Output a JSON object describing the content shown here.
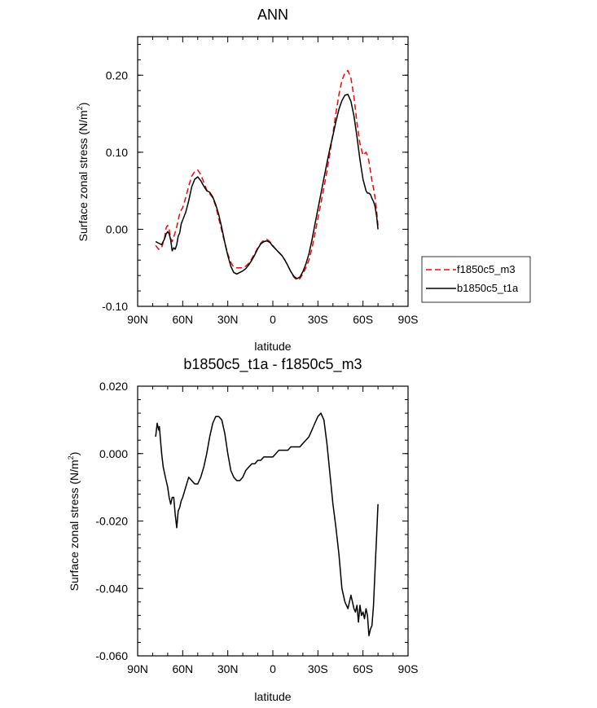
{
  "chart_data": [
    {
      "type": "line",
      "title": "ANN",
      "xlabel": "latitude",
      "ylabel": "Surface zonal stress (N/m",
      "ylabel_sup": "2",
      "ylabel_close": ")",
      "xlim": [
        90,
        -90
      ],
      "ylim": [
        -0.1,
        0.25
      ],
      "xticks": [
        {
          "value": 90,
          "label": "90N"
        },
        {
          "value": 60,
          "label": "60N"
        },
        {
          "value": 30,
          "label": "30N"
        },
        {
          "value": 0,
          "label": "0"
        },
        {
          "value": -30,
          "label": "30S"
        },
        {
          "value": -60,
          "label": "60S"
        },
        {
          "value": -90,
          "label": "90S"
        }
      ],
      "yticks": [
        {
          "value": 0.2,
          "label": "0.20"
        },
        {
          "value": 0.1,
          "label": "0.10"
        },
        {
          "value": 0.0,
          "label": "0.00"
        },
        {
          "value": -0.1,
          "label": "-0.10"
        }
      ],
      "legend_placement": "outside-right",
      "series": [
        {
          "name": "f1850c5_m3",
          "color": "#ff0000",
          "dashed": true,
          "x": [
            78,
            76,
            74,
            72,
            71,
            70,
            69,
            68,
            67,
            66,
            65,
            64,
            63,
            62,
            61,
            60,
            58,
            56,
            54,
            52,
            50,
            48,
            46,
            44,
            42,
            40,
            38,
            36,
            34,
            32,
            30,
            28,
            26,
            24,
            22,
            20,
            18,
            16,
            14,
            12,
            10,
            8,
            6,
            4,
            2,
            0,
            -2,
            -4,
            -6,
            -8,
            -10,
            -12,
            -14,
            -16,
            -18,
            -20,
            -22,
            -24,
            -26,
            -28,
            -30,
            -32,
            -34,
            -36,
            -38,
            -40,
            -42,
            -44,
            -46,
            -48,
            -50,
            -52,
            -54,
            -56,
            -58,
            -60,
            -62,
            -63,
            -64,
            -65,
            -66,
            -67,
            -68,
            -69,
            -70
          ],
          "y": [
            -0.021,
            -0.026,
            -0.024,
            -0.01,
            0.002,
            0.005,
            0.0,
            -0.012,
            -0.016,
            -0.01,
            -0.004,
            0.003,
            0.012,
            0.02,
            0.025,
            0.028,
            0.041,
            0.056,
            0.069,
            0.075,
            0.077,
            0.071,
            0.061,
            0.051,
            0.046,
            0.041,
            0.03,
            0.014,
            -0.002,
            -0.018,
            -0.032,
            -0.043,
            -0.049,
            -0.05,
            -0.05,
            -0.05,
            -0.048,
            -0.044,
            -0.038,
            -0.031,
            -0.024,
            -0.018,
            -0.014,
            -0.013,
            -0.016,
            -0.021,
            -0.026,
            -0.03,
            -0.034,
            -0.04,
            -0.047,
            -0.055,
            -0.062,
            -0.066,
            -0.064,
            -0.058,
            -0.05,
            -0.04,
            -0.025,
            -0.006,
            0.014,
            0.034,
            0.054,
            0.075,
            0.099,
            0.124,
            0.151,
            0.175,
            0.193,
            0.203,
            0.206,
            0.196,
            0.172,
            0.138,
            0.111,
            0.096,
            0.1,
            0.096,
            0.088,
            0.075,
            0.063,
            0.053,
            0.042,
            0.025,
            0.005
          ]
        },
        {
          "name": "b1850c5_t1a",
          "color": "#000000",
          "dashed": false,
          "x": [
            78,
            76,
            74,
            72,
            71,
            70,
            69,
            68,
            67,
            66,
            65,
            64,
            63,
            62,
            61,
            60,
            58,
            56,
            54,
            52,
            50,
            48,
            46,
            44,
            42,
            40,
            38,
            36,
            34,
            32,
            30,
            28,
            26,
            24,
            22,
            20,
            18,
            16,
            14,
            12,
            10,
            8,
            6,
            4,
            2,
            0,
            -2,
            -4,
            -6,
            -8,
            -10,
            -12,
            -14,
            -16,
            -18,
            -20,
            -22,
            -24,
            -26,
            -28,
            -30,
            -32,
            -34,
            -36,
            -38,
            -40,
            -42,
            -44,
            -46,
            -48,
            -50,
            -52,
            -54,
            -56,
            -58,
            -60,
            -62,
            -63,
            -64,
            -65,
            -66,
            -67,
            -68,
            -69,
            -70
          ],
          "y": [
            -0.016,
            -0.018,
            -0.02,
            -0.012,
            -0.006,
            -0.003,
            -0.006,
            -0.014,
            -0.028,
            -0.024,
            -0.026,
            -0.02,
            -0.009,
            -0.005,
            0.007,
            0.012,
            0.022,
            0.037,
            0.055,
            0.065,
            0.068,
            0.063,
            0.056,
            0.05,
            0.048,
            0.042,
            0.032,
            0.019,
            0.002,
            -0.017,
            -0.034,
            -0.048,
            -0.056,
            -0.058,
            -0.056,
            -0.054,
            -0.051,
            -0.046,
            -0.04,
            -0.033,
            -0.025,
            -0.019,
            -0.016,
            -0.015,
            -0.017,
            -0.022,
            -0.026,
            -0.03,
            -0.034,
            -0.04,
            -0.047,
            -0.055,
            -0.061,
            -0.064,
            -0.062,
            -0.055,
            -0.045,
            -0.032,
            -0.014,
            0.006,
            0.026,
            0.046,
            0.066,
            0.086,
            0.105,
            0.122,
            0.14,
            0.156,
            0.167,
            0.174,
            0.175,
            0.166,
            0.147,
            0.12,
            0.09,
            0.065,
            0.05,
            0.047,
            0.047,
            0.045,
            0.04,
            0.036,
            0.03,
            0.018,
            0.0
          ]
        }
      ]
    },
    {
      "type": "line",
      "title": "b1850c5_t1a - f1850c5_m3",
      "xlabel": "latitude",
      "ylabel": "Surface zonal stress (N/m",
      "ylabel_sup": "2",
      "ylabel_close": ")",
      "xlim": [
        90,
        -90
      ],
      "ylim": [
        -0.06,
        0.02
      ],
      "xticks": [
        {
          "value": 90,
          "label": "90N"
        },
        {
          "value": 60,
          "label": "60N"
        },
        {
          "value": 30,
          "label": "30N"
        },
        {
          "value": 0,
          "label": "0"
        },
        {
          "value": -30,
          "label": "30S"
        },
        {
          "value": -60,
          "label": "60S"
        },
        {
          "value": -90,
          "label": "90S"
        }
      ],
      "yticks": [
        {
          "value": 0.02,
          "label": "0.020"
        },
        {
          "value": 0.0,
          "label": "0.000"
        },
        {
          "value": -0.02,
          "label": "-0.020"
        },
        {
          "value": -0.04,
          "label": "-0.040"
        },
        {
          "value": -0.06,
          "label": "-0.060"
        }
      ],
      "series": [
        {
          "color": "#000000",
          "dashed": false,
          "x": [
            78,
            77,
            76,
            75.5,
            75,
            74,
            73,
            72,
            71,
            70,
            69,
            68,
            67,
            66,
            65,
            64,
            63,
            62,
            61,
            60,
            58,
            56,
            54,
            52,
            50,
            48,
            46,
            44,
            42,
            40,
            38,
            36,
            34,
            32,
            30,
            28,
            26,
            24,
            22,
            20,
            18,
            16,
            14,
            12,
            10,
            8,
            6,
            4,
            2,
            0,
            -2,
            -4,
            -6,
            -8,
            -10,
            -12,
            -14,
            -16,
            -18,
            -20,
            -22,
            -24,
            -26,
            -28,
            -30,
            -32,
            -34,
            -36,
            -38,
            -40,
            -42,
            -44,
            -46,
            -48,
            -50,
            -52,
            -54,
            -55,
            -56,
            -57,
            -58,
            -59,
            -60,
            -61,
            -62,
            -63,
            -64,
            -65,
            -66,
            -67,
            -68,
            -69,
            -70
          ],
          "y": [
            0.005,
            0.009,
            0.007,
            0.008,
            0.005,
            0.0,
            -0.004,
            -0.006,
            -0.008,
            -0.01,
            -0.013,
            -0.015,
            -0.013,
            -0.013,
            -0.018,
            -0.022,
            -0.017,
            -0.016,
            -0.014,
            -0.013,
            -0.01,
            -0.007,
            -0.008,
            -0.009,
            -0.009,
            -0.007,
            -0.004,
            0.0,
            0.005,
            0.009,
            0.011,
            0.011,
            0.01,
            0.006,
            0.0,
            -0.005,
            -0.007,
            -0.008,
            -0.008,
            -0.007,
            -0.005,
            -0.004,
            -0.003,
            -0.003,
            -0.002,
            -0.002,
            -0.001,
            -0.001,
            -0.001,
            -0.001,
            0.0,
            0.001,
            0.001,
            0.001,
            0.001,
            0.002,
            0.002,
            0.002,
            0.002,
            0.003,
            0.004,
            0.005,
            0.007,
            0.009,
            0.011,
            0.012,
            0.01,
            0.003,
            -0.006,
            -0.015,
            -0.022,
            -0.03,
            -0.04,
            -0.044,
            -0.046,
            -0.042,
            -0.046,
            -0.047,
            -0.045,
            -0.05,
            -0.045,
            -0.048,
            -0.047,
            -0.049,
            -0.046,
            -0.048,
            -0.054,
            -0.052,
            -0.051,
            -0.045,
            -0.035,
            -0.025,
            -0.015
          ]
        }
      ]
    }
  ]
}
